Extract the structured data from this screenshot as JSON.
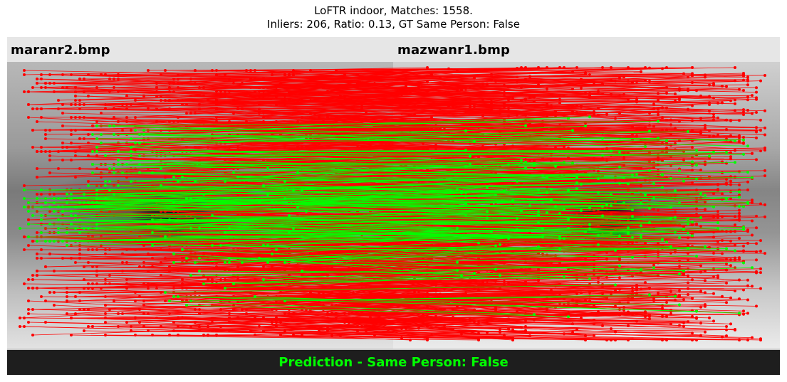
{
  "figure": {
    "title_line1": "LoFTR indoor, Matches: 1558.",
    "title_line2": "Inliers: 206, Ratio: 0.13, GT Same Person: False"
  },
  "left_image": {
    "filename": "maranr2.bmp"
  },
  "right_image": {
    "filename": "mazwanr1.bmp"
  },
  "prediction": {
    "text": "Prediction - Same Person: False"
  },
  "stats": {
    "matches": 1558,
    "inliers": 206,
    "ratio": 0.13
  },
  "colors": {
    "outlier_match": "#ff0000",
    "inlier_match": "#00ff00",
    "prediction_text": "#00ff00",
    "prediction_bar": "#1e1e1e",
    "label_bar": "#e6e6e6"
  }
}
